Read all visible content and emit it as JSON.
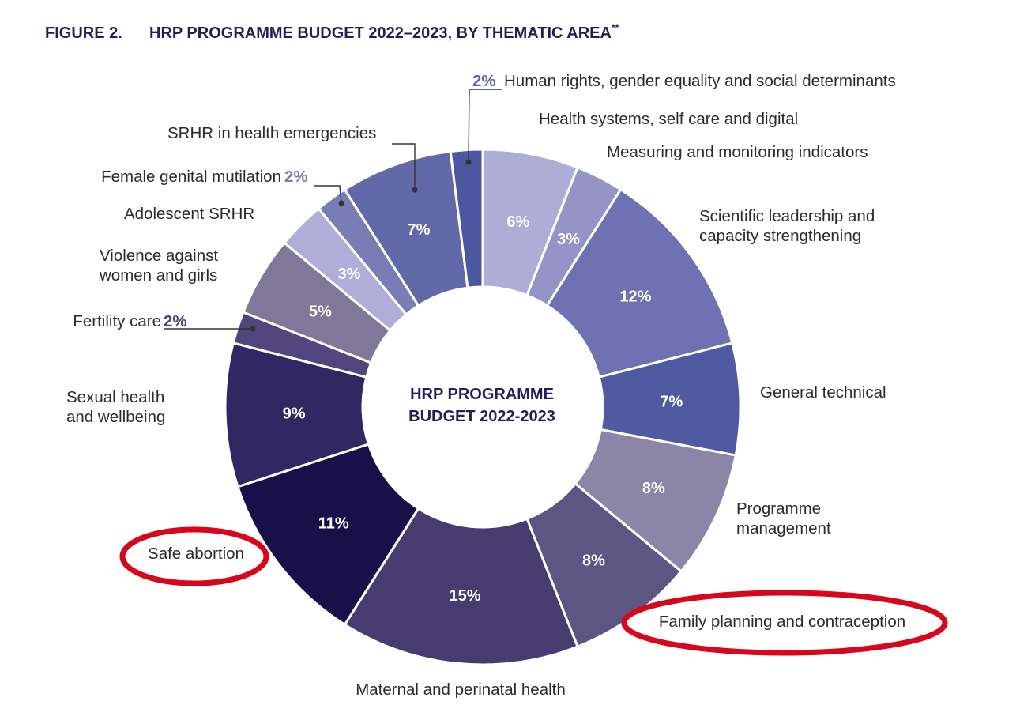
{
  "figure": {
    "label": "FIGURE 2.",
    "title": "HRP PROGRAMME BUDGET 2022–2023, BY THEMATIC AREA",
    "title_mark": "**"
  },
  "center_label": [
    "HRP PROGRAMME",
    "BUDGET 2022-2023"
  ],
  "chart_data": {
    "type": "pie",
    "variant": "donut",
    "start_angle_deg": 0,
    "direction": "clockwise",
    "categories": [
      "Health systems, self care and digital",
      "Measuring and monitoring indicators",
      "Scientific leadership and capacity strengthening",
      "General technical",
      "Programme management",
      "Family planning and contraception",
      "Maternal and perinatal health",
      "Safe abortion",
      "Sexual health and wellbeing",
      "Fertility care",
      "Violence against women and girls",
      "Adolescent SRHR",
      "Female genital mutilation",
      "SRHR in health emergencies",
      "Human rights, gender equality and social determinants"
    ],
    "values": [
      6,
      3,
      12,
      7,
      8,
      8,
      15,
      11,
      9,
      2,
      5,
      3,
      2,
      7,
      2
    ],
    "value_labels": [
      "6%",
      "3%",
      "12%",
      "7%",
      "8%",
      "8%",
      "15%",
      "11%",
      "9%",
      "2%",
      "5%",
      "3%",
      "2%",
      "7%",
      "2%"
    ],
    "colors": [
      "#aeadd5",
      "#9594c7",
      "#6e72b2",
      "#4f5aa1",
      "#8b86a8",
      "#5d5582",
      "#463c70",
      "#1a1049",
      "#302763",
      "#51477e",
      "#807898",
      "#b0aed8",
      "#7a7cb5",
      "#6269a8",
      "#4d56a1"
    ],
    "highlighted": [
      "Safe abortion",
      "Family planning and contraception"
    ],
    "highlight_color": "#d8061a"
  }
}
